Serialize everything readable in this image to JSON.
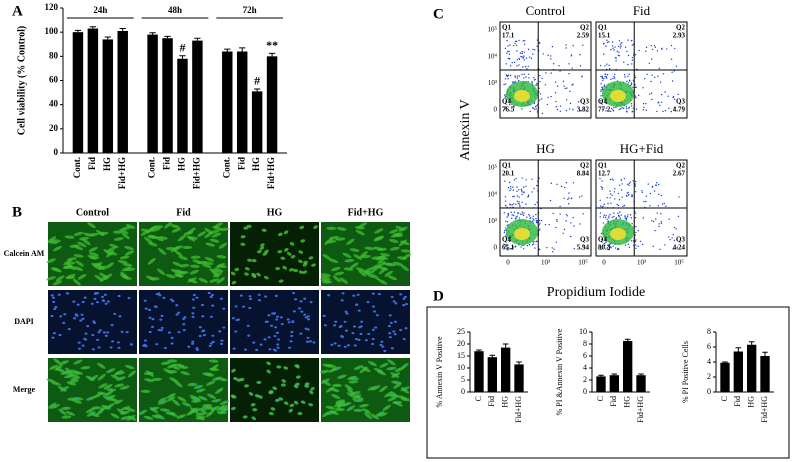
{
  "panel_labels": [
    "A",
    "B",
    "C",
    "D"
  ],
  "microscopy": {
    "columns": [
      "Control",
      "Fid",
      "HG",
      "Fid+HG"
    ],
    "rows": [
      "Calcein AM",
      "DAPI",
      "Merge"
    ]
  },
  "flow": {
    "y_label": "Annexin V",
    "x_label": "Propidium Iodide",
    "y_ticks": [
      "10⁵",
      "10⁴",
      "10³",
      "0"
    ],
    "x_ticks": [
      "0",
      "10³",
      "10⁵"
    ],
    "plots": [
      {
        "title": "Control",
        "quadrants": [
          {
            "name": "Q1",
            "value": 17.1
          },
          {
            "name": "Q2",
            "value": 2.59
          },
          {
            "name": "Q3",
            "value": 3.82
          },
          {
            "name": "Q4",
            "value": 76.5
          }
        ]
      },
      {
        "title": "Fid",
        "quadrants": [
          {
            "name": "Q1",
            "value": 15.1
          },
          {
            "name": "Q2",
            "value": 2.93
          },
          {
            "name": "Q3",
            "value": 4.79
          },
          {
            "name": "Q4",
            "value": 77.2
          }
        ]
      },
      {
        "title": "HG",
        "quadrants": [
          {
            "name": "Q1",
            "value": 20.1
          },
          {
            "name": "Q2",
            "value": 8.84
          },
          {
            "name": "Q3",
            "value": 5.94
          },
          {
            "name": "Q4",
            "value": 65.1
          }
        ]
      },
      {
        "title": "HG+Fid",
        "quadrants": [
          {
            "name": "Q1",
            "value": 12.7
          },
          {
            "name": "Q2",
            "value": 2.67
          },
          {
            "name": "Q3",
            "value": 4.24
          },
          {
            "name": "Q4",
            "value": 80.3
          }
        ]
      }
    ]
  },
  "chart_data": [
    {
      "type": "bar",
      "y_label": "Cell viability (% Control)",
      "color": "#000000",
      "ylim": [
        0,
        120
      ],
      "yticks": [
        0,
        20,
        40,
        60,
        80,
        100,
        120
      ],
      "groups": [
        {
          "name": "24h",
          "categories": [
            "Cont.",
            "Fid",
            "HG",
            "Fid+HG"
          ],
          "values": [
            100,
            103,
            94,
            101
          ],
          "errors": [
            1.5,
            1.5,
            2,
            2
          ],
          "markers": [
            null,
            null,
            null,
            null
          ]
        },
        {
          "name": "48h",
          "categories": [
            "Cont.",
            "Fid",
            "HG",
            "Fid+HG"
          ],
          "values": [
            98,
            95,
            78,
            93
          ],
          "errors": [
            1.5,
            1.5,
            2.5,
            2
          ],
          "markers": [
            null,
            null,
            "#",
            null
          ]
        },
        {
          "name": "72h",
          "categories": [
            "Cont.",
            "Fid",
            "HG",
            "Fid+HG"
          ],
          "values": [
            84,
            84,
            51,
            80
          ],
          "errors": [
            2,
            3,
            2,
            2.5
          ],
          "markers": [
            null,
            null,
            "#",
            "**"
          ]
        }
      ]
    },
    {
      "type": "bar",
      "y_label": "% Annexin V Positive",
      "color": "#000000",
      "categories": [
        "C",
        "Fid",
        "HG",
        "Fid+HG"
      ],
      "values": [
        17,
        14.5,
        18.5,
        11.5
      ],
      "errors": [
        0.5,
        0.8,
        1.5,
        1
      ],
      "ylim": [
        0,
        25
      ],
      "yticks": [
        0,
        5,
        10,
        15,
        20,
        25
      ]
    },
    {
      "type": "bar",
      "y_label": "% PI &Annexin V Positive",
      "color": "#000000",
      "categories": [
        "C",
        "Fid",
        "HG",
        "Fid+HG"
      ],
      "values": [
        2.6,
        2.8,
        8.5,
        2.8
      ],
      "errors": [
        0.2,
        0.2,
        0.3,
        0.2
      ],
      "ylim": [
        0,
        10
      ],
      "yticks": [
        0,
        2,
        4,
        6,
        8,
        10
      ]
    },
    {
      "type": "bar",
      "y_label": "% PI Positive Cells",
      "color": "#000000",
      "categories": [
        "C",
        "Fid",
        "HG",
        "Fid+HG"
      ],
      "values": [
        3.9,
        5.4,
        6.3,
        4.8
      ],
      "errors": [
        0.1,
        0.5,
        0.4,
        0.5
      ],
      "ylim": [
        0,
        8
      ],
      "yticks": [
        0,
        2,
        4,
        6,
        8
      ]
    }
  ]
}
